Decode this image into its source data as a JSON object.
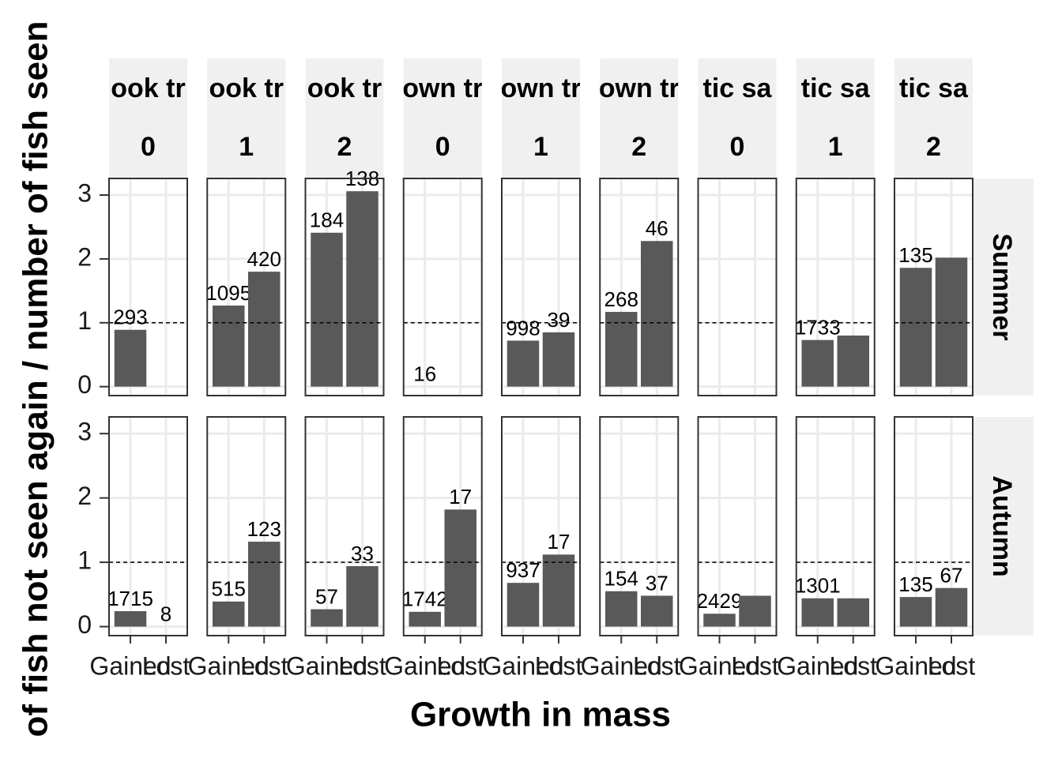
{
  "chart_data": {
    "type": "bar",
    "x_label": "Growth in mass",
    "y_label": "of fish not seen again / number of fish seen",
    "categories": [
      "Gained",
      "Lost"
    ],
    "columns": [
      {
        "label": "ook tr",
        "group": 0
      },
      {
        "label": "ook tr",
        "group": 1
      },
      {
        "label": "ook tr",
        "group": 2
      },
      {
        "label": "own tr",
        "group": 0
      },
      {
        "label": "own tr",
        "group": 1
      },
      {
        "label": "own tr",
        "group": 2
      },
      {
        "label": "tic sa",
        "group": 0
      },
      {
        "label": "tic sa",
        "group": 1
      },
      {
        "label": "tic sa",
        "group": 2
      }
    ],
    "rows": [
      "Summer",
      "Autumn"
    ],
    "panels": [
      [
        {
          "values": [
            0.89,
            null
          ],
          "labels": [
            293,
            null
          ]
        },
        {
          "values": [
            1.27,
            1.8
          ],
          "labels": [
            1095,
            420
          ]
        },
        {
          "values": [
            2.41,
            3.06
          ],
          "labels": [
            184,
            138
          ]
        },
        {
          "values": [
            0,
            null
          ],
          "labels": [
            16,
            null
          ]
        },
        {
          "values": [
            0.72,
            0.85
          ],
          "labels": [
            998,
            39
          ]
        },
        {
          "values": [
            1.17,
            2.28
          ],
          "labels": [
            268,
            46
          ]
        },
        {
          "values": [
            null,
            null
          ],
          "labels": [
            null,
            null
          ]
        },
        {
          "values": [
            0.73,
            0.8
          ],
          "labels": [
            1733,
            null
          ]
        },
        {
          "values": [
            1.86,
            2.02
          ],
          "labels": [
            135,
            null
          ]
        }
      ],
      [
        {
          "values": [
            0.24,
            0
          ],
          "labels": [
            1715,
            8
          ]
        },
        {
          "values": [
            0.39,
            1.32
          ],
          "labels": [
            515,
            123
          ]
        },
        {
          "values": [
            0.27,
            0.94
          ],
          "labels": [
            57,
            33
          ]
        },
        {
          "values": [
            0.23,
            1.82
          ],
          "labels": [
            1742,
            17
          ]
        },
        {
          "values": [
            0.68,
            1.12
          ],
          "labels": [
            937,
            17
          ]
        },
        {
          "values": [
            0.55,
            0.48
          ],
          "labels": [
            154,
            37
          ]
        },
        {
          "values": [
            0.2,
            0.48
          ],
          "labels": [
            2429,
            null
          ]
        },
        {
          "values": [
            0.44,
            0.44
          ],
          "labels": [
            1301,
            null
          ]
        },
        {
          "values": [
            0.46,
            0.6
          ],
          "labels": [
            135,
            67
          ]
        }
      ]
    ],
    "ylim": [
      -0.14,
      3.26
    ],
    "yticks": [
      0,
      1,
      2,
      3
    ],
    "hline": 1,
    "color": "#595959",
    "grid": true
  }
}
